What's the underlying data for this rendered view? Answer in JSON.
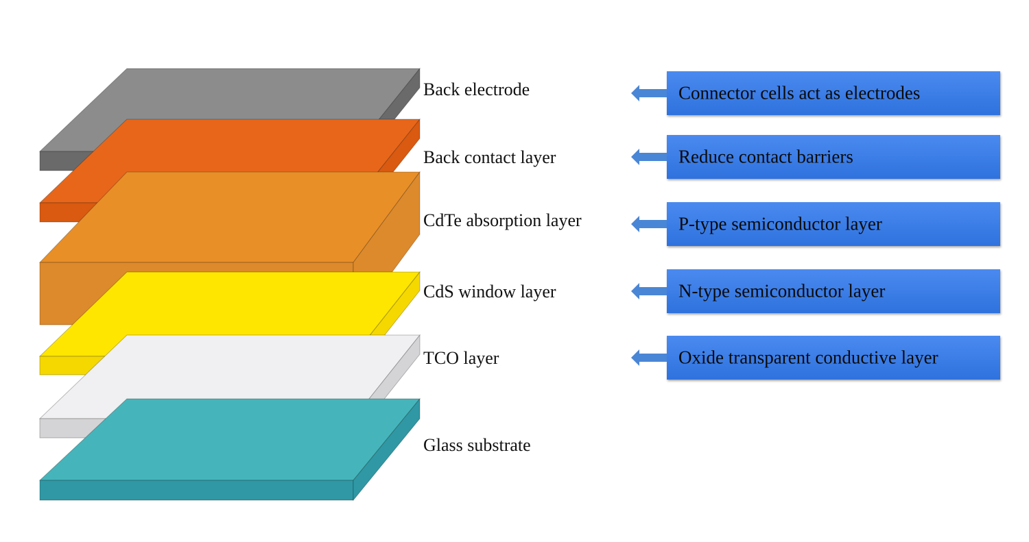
{
  "layers": [
    {
      "label": "Back electrode",
      "color": "#8c8c8c",
      "dark": "#6a6a6a"
    },
    {
      "label": "Back contact layer",
      "color": "#e8661a",
      "dark": "#d95a10"
    },
    {
      "label": "CdTe absorption layer",
      "color": "#e98f28",
      "dark": "#dd8a2c"
    },
    {
      "label": "CdS window layer",
      "color": "#ffe600",
      "dark": "#f5d800"
    },
    {
      "label": "TCO layer",
      "color": "#f0f0f2",
      "dark": "#d4d4d6"
    },
    {
      "label": "Glass substrate",
      "color": "#45b5bb",
      "dark": "#2f98a4"
    }
  ],
  "descriptions": [
    "Connector cells act as electrodes",
    "Reduce contact barriers",
    "P-type semiconductor layer",
    "N-type semiconductor layer",
    "Oxide transparent conductive layer"
  ],
  "colors": {
    "box": "#3a7de6",
    "arrow": "#4a86d6"
  }
}
